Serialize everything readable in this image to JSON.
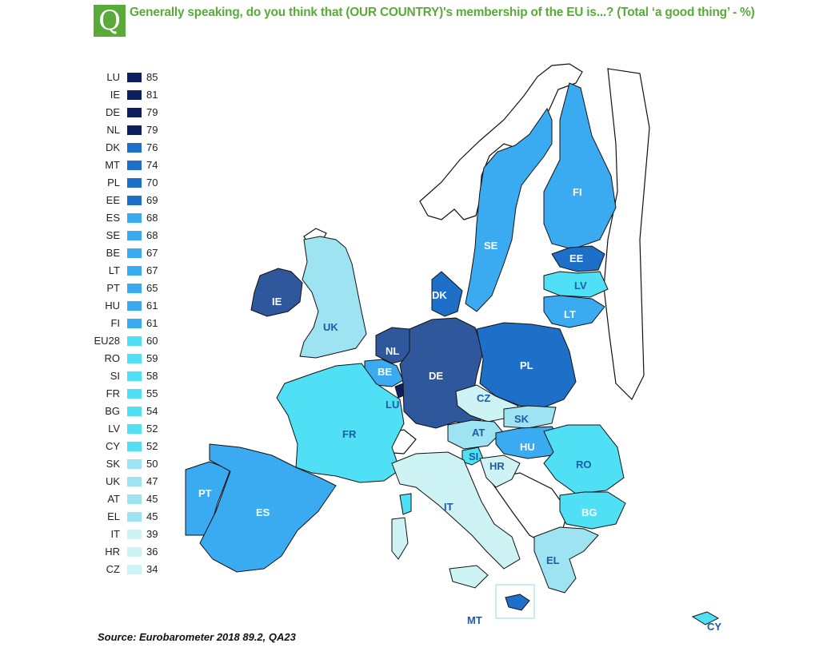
{
  "header": {
    "badge": "Q",
    "question": "Generally speaking, do you think that (OUR COUNTRY)'s membership of the EU is...? (Total ‘a good thing’ - %)"
  },
  "legend": [
    {
      "code": "LU",
      "value": "85",
      "color": "#0d1f5e"
    },
    {
      "code": "IE",
      "value": "81",
      "color": "#0d1f5e"
    },
    {
      "code": "DE",
      "value": "79",
      "color": "#0d1f5e"
    },
    {
      "code": "NL",
      "value": "79",
      "color": "#0d1f5e"
    },
    {
      "code": "DK",
      "value": "76",
      "color": "#1e6fc7"
    },
    {
      "code": "MT",
      "value": "74",
      "color": "#1e6fc7"
    },
    {
      "code": "PL",
      "value": "70",
      "color": "#1e6fc7"
    },
    {
      "code": "EE",
      "value": "69",
      "color": "#1e6fc7"
    },
    {
      "code": "ES",
      "value": "68",
      "color": "#3aabf0"
    },
    {
      "code": "SE",
      "value": "68",
      "color": "#3aabf0"
    },
    {
      "code": "BE",
      "value": "67",
      "color": "#3aabf0"
    },
    {
      "code": "LT",
      "value": "67",
      "color": "#3aabf0"
    },
    {
      "code": "PT",
      "value": "65",
      "color": "#3aabf0"
    },
    {
      "code": "HU",
      "value": "61",
      "color": "#3aabf0"
    },
    {
      "code": "FI",
      "value": "61",
      "color": "#3aabf0"
    },
    {
      "code": "EU28",
      "value": "60",
      "color": "#4fe0f5"
    },
    {
      "code": "RO",
      "value": "59",
      "color": "#4fe0f5"
    },
    {
      "code": "SI",
      "value": "58",
      "color": "#4fe0f5"
    },
    {
      "code": "FR",
      "value": "55",
      "color": "#4fe0f5"
    },
    {
      "code": "BG",
      "value": "54",
      "color": "#4fe0f5"
    },
    {
      "code": "LV",
      "value": "52",
      "color": "#4fe0f5"
    },
    {
      "code": "CY",
      "value": "52",
      "color": "#4fe0f5"
    },
    {
      "code": "SK",
      "value": "50",
      "color": "#9de3f2"
    },
    {
      "code": "UK",
      "value": "47",
      "color": "#9de3f2"
    },
    {
      "code": "AT",
      "value": "45",
      "color": "#9de3f2"
    },
    {
      "code": "EL",
      "value": "45",
      "color": "#9de3f2"
    },
    {
      "code": "IT",
      "value": "39",
      "color": "#cdf3f5"
    },
    {
      "code": "HR",
      "value": "36",
      "color": "#cdf3f5"
    },
    {
      "code": "CZ",
      "value": "34",
      "color": "#cdf3f5"
    }
  ],
  "map_labels": {
    "FI": "FI",
    "SE": "SE",
    "EE": "EE",
    "LV": "LV",
    "LT": "LT",
    "DK": "DK",
    "IE": "IE",
    "UK": "UK",
    "NL": "NL",
    "BE": "BE",
    "LU": "LU",
    "DE": "DE",
    "PL": "PL",
    "CZ": "CZ",
    "SK": "SK",
    "AT": "AT",
    "HU": "HU",
    "SI": "SI",
    "HR": "HR",
    "RO": "RO",
    "BG": "BG",
    "FR": "FR",
    "PT": "PT",
    "ES": "ES",
    "IT": "IT",
    "EL": "EL",
    "MT": "MT",
    "CY": "CY"
  },
  "source": "Source: Eurobarometer 2018 89.2, QA23"
}
